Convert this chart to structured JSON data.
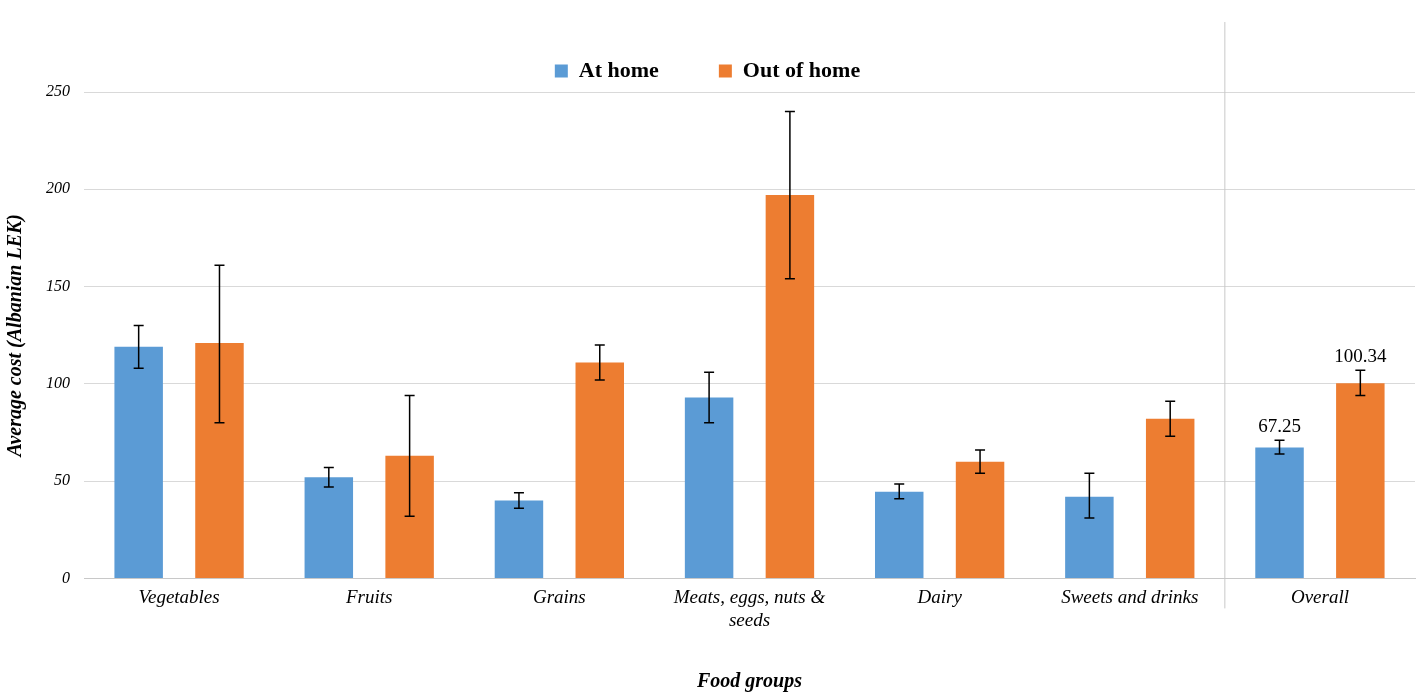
{
  "chart_data": {
    "type": "bar",
    "xlabel": "Food groups",
    "ylabel": "Average cost (Albanian LEK)",
    "categories": [
      "Vegetables",
      "Fruits",
      "Grains",
      "Meats, eggs, nuts & seeds",
      "Dairy",
      "Sweets and drinks",
      "Overall"
    ],
    "series": [
      {
        "name": "At home",
        "color": "#5b9bd5",
        "values": [
          119,
          52,
          40,
          93,
          44.6,
          42,
          67.25
        ],
        "errors": [
          [
            108,
            130
          ],
          [
            47,
            57
          ],
          [
            36,
            44
          ],
          [
            80,
            106
          ],
          [
            41,
            48.5
          ],
          [
            31,
            54
          ],
          [
            64,
            71
          ]
        ],
        "value_labels": [
          null,
          null,
          null,
          null,
          null,
          null,
          "67.25"
        ]
      },
      {
        "name": "Out of home",
        "color": "#ed7d31",
        "values": [
          121,
          63,
          111,
          197,
          60,
          82,
          100.34
        ],
        "errors": [
          [
            80,
            161
          ],
          [
            32,
            94
          ],
          [
            102,
            120
          ],
          [
            154,
            240
          ],
          [
            54,
            66
          ],
          [
            73,
            91
          ],
          [
            94,
            107
          ]
        ],
        "value_labels": [
          null,
          null,
          null,
          null,
          null,
          null,
          "100.34"
        ]
      }
    ],
    "ref_lines": [
      {
        "axis": "x",
        "value": "Overall",
        "color": "#c8c8c8"
      }
    ],
    "ylim": [
      0,
      250
    ],
    "yticks": [
      0,
      50,
      100,
      150,
      200,
      250
    ],
    "grid": "y",
    "legend": "top"
  }
}
